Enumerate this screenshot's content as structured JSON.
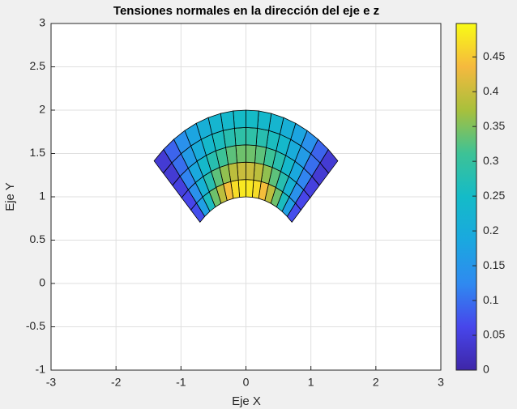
{
  "chart_data": {
    "type": "patch",
    "title": "Tensiones normales en la dirección del eje e z",
    "x_label": "Eje X",
    "y_label": "Eje Y",
    "xlim": [
      -3,
      3
    ],
    "xticks": [
      -3,
      -2,
      -1,
      0,
      1,
      2,
      3
    ],
    "ylim": [
      -1,
      3
    ],
    "yticks": [
      -1,
      -0.5,
      0,
      0.5,
      1,
      1.5,
      2,
      2.5,
      3
    ],
    "grid": true,
    "r_edges": [
      1,
      1.2,
      1.4,
      1.6,
      1.8,
      2
    ],
    "theta_edges": [
      45,
      50.625,
      56.25,
      61.875,
      67.5,
      73.125,
      78.75,
      84.375,
      90,
      95.625,
      101.25,
      106.875,
      112.5,
      118.125,
      123.75,
      129.375,
      135
    ],
    "values": [
      [
        0.07,
        0.17,
        0.26,
        0.34,
        0.39,
        0.44,
        0.47,
        0.48,
        0.48,
        0.47,
        0.44,
        0.39,
        0.34,
        0.26,
        0.17,
        0.07
      ],
      [
        0.06,
        0.14,
        0.22,
        0.28,
        0.33,
        0.36,
        0.39,
        0.4,
        0.4,
        0.39,
        0.36,
        0.33,
        0.28,
        0.22,
        0.14,
        0.06
      ],
      [
        0.05,
        0.12,
        0.19,
        0.24,
        0.28,
        0.31,
        0.33,
        0.34,
        0.34,
        0.33,
        0.31,
        0.28,
        0.24,
        0.19,
        0.12,
        0.05
      ],
      [
        0.04,
        0.1,
        0.16,
        0.2,
        0.24,
        0.26,
        0.28,
        0.29,
        0.29,
        0.28,
        0.26,
        0.24,
        0.2,
        0.16,
        0.1,
        0.04
      ],
      [
        0.04,
        0.09,
        0.14,
        0.18,
        0.21,
        0.23,
        0.24,
        0.25,
        0.25,
        0.24,
        0.23,
        0.21,
        0.18,
        0.14,
        0.09,
        0.04
      ]
    ],
    "colormap": [
      "#3e26a8",
      "#4746eb",
      "#2f8af0",
      "#1aa8df",
      "#14bbc8",
      "#3dc296",
      "#a8c03c",
      "#f5b93e",
      "#f9fb15"
    ],
    "clim": [
      0,
      0.498
    ],
    "cticks": [
      0,
      0.05,
      0.1,
      0.15,
      0.2,
      0.25,
      0.3,
      0.35,
      0.4,
      0.45
    ]
  }
}
